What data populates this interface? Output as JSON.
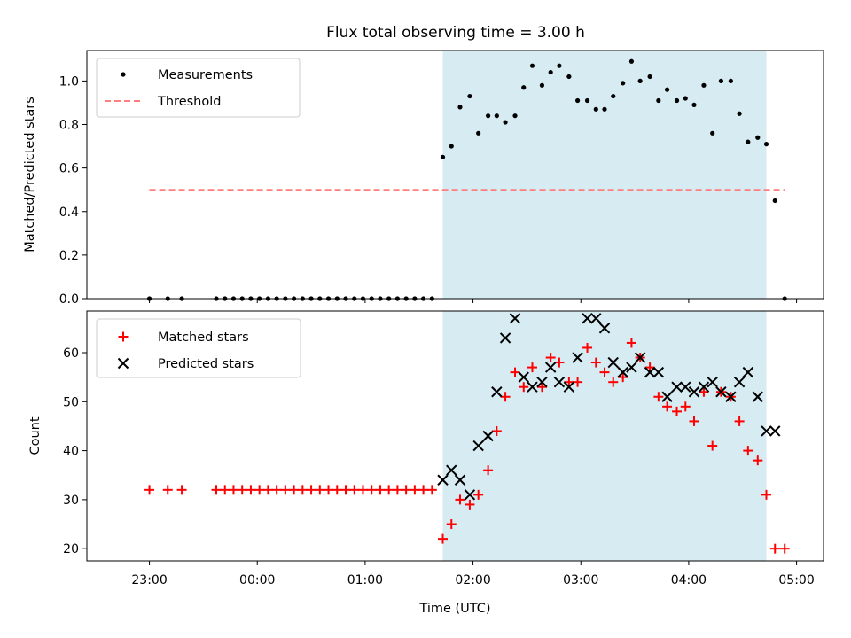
{
  "chart_data": [
    {
      "type": "scatter",
      "title": "Flux total observing time = 3.00 h",
      "xlabel": "",
      "ylabel": "Matched/Predicted stars",
      "ylim": [
        0,
        1.14
      ],
      "yticks": [
        0.0,
        0.2,
        0.4,
        0.6,
        0.8,
        1.0
      ],
      "ytick_labels": [
        "0.0",
        "0.2",
        "0.4",
        "0.6",
        "0.8",
        "1.0"
      ],
      "xlim_hours": [
        -1.58,
        5.25
      ],
      "shade_hours": [
        1.72,
        4.72
      ],
      "shade_color": "#add8e6",
      "legend_position": "upper-left",
      "series": [
        {
          "name": "Measurements",
          "marker": "dot",
          "color": "#000000",
          "x_hours": [
            -1.0,
            -0.83,
            -0.7,
            -0.38,
            -0.3,
            -0.22,
            -0.14,
            -0.06,
            0.02,
            0.1,
            0.18,
            0.26,
            0.34,
            0.42,
            0.5,
            0.58,
            0.66,
            0.74,
            0.82,
            0.9,
            0.98,
            1.06,
            1.14,
            1.22,
            1.3,
            1.38,
            1.46,
            1.54,
            1.62,
            1.72,
            1.8,
            1.88,
            1.97,
            2.05,
            2.14,
            2.22,
            2.3,
            2.39,
            2.47,
            2.55,
            2.64,
            2.72,
            2.8,
            2.89,
            2.97,
            3.06,
            3.14,
            3.22,
            3.3,
            3.39,
            3.47,
            3.55,
            3.64,
            3.72,
            3.8,
            3.89,
            3.97,
            4.05,
            4.14,
            4.22,
            4.3,
            4.39,
            4.47,
            4.55,
            4.64,
            4.72,
            4.8,
            4.89
          ],
          "values": [
            0,
            0,
            0,
            0,
            0,
            0,
            0,
            0,
            0,
            0,
            0,
            0,
            0,
            0,
            0,
            0,
            0,
            0,
            0,
            0,
            0,
            0,
            0,
            0,
            0,
            0,
            0,
            0,
            0,
            0.65,
            0.7,
            0.88,
            0.93,
            0.76,
            0.84,
            0.84,
            0.81,
            0.84,
            0.97,
            1.07,
            0.98,
            1.04,
            1.07,
            1.02,
            0.91,
            0.91,
            0.87,
            0.87,
            0.93,
            0.99,
            1.09,
            1.0,
            1.02,
            0.91,
            0.96,
            0.91,
            0.92,
            0.89,
            0.98,
            0.76,
            1.0,
            1.0,
            0.85,
            0.72,
            0.74,
            0.71,
            0.45,
            0.0
          ]
        },
        {
          "name": "Threshold",
          "marker": "dashed-line",
          "color": "#ff7f7f",
          "x_hours": [
            -1.0,
            4.89
          ],
          "values": [
            0.5,
            0.5
          ]
        }
      ]
    },
    {
      "type": "scatter",
      "title": "",
      "xlabel": "Time (UTC)",
      "ylabel": "Count",
      "ylim": [
        17.5,
        68.5
      ],
      "yticks": [
        20,
        30,
        40,
        50,
        60
      ],
      "ytick_labels": [
        "20",
        "30",
        "40",
        "50",
        "60"
      ],
      "xlim_hours": [
        -1.58,
        5.25
      ],
      "xticks_hours": [
        -1,
        0,
        1,
        2,
        3,
        4,
        5
      ],
      "xtick_labels": [
        "23:00",
        "00:00",
        "01:00",
        "02:00",
        "03:00",
        "04:00",
        "05:00"
      ],
      "shade_hours": [
        1.72,
        4.72
      ],
      "shade_color": "#add8e6",
      "legend_position": "upper-left",
      "series": [
        {
          "name": "Matched stars",
          "marker": "plus",
          "color": "#ff0000",
          "x_hours": [
            -1.0,
            -0.83,
            -0.7,
            -0.38,
            -0.3,
            -0.22,
            -0.14,
            -0.06,
            0.02,
            0.1,
            0.18,
            0.26,
            0.34,
            0.42,
            0.5,
            0.58,
            0.66,
            0.74,
            0.82,
            0.9,
            0.98,
            1.06,
            1.14,
            1.22,
            1.3,
            1.38,
            1.46,
            1.54,
            1.62,
            1.72,
            1.8,
            1.88,
            1.97,
            2.05,
            2.14,
            2.22,
            2.3,
            2.39,
            2.47,
            2.55,
            2.64,
            2.72,
            2.8,
            2.89,
            2.97,
            3.06,
            3.14,
            3.22,
            3.3,
            3.39,
            3.47,
            3.55,
            3.64,
            3.72,
            3.8,
            3.89,
            3.97,
            4.05,
            4.14,
            4.22,
            4.3,
            4.39,
            4.47,
            4.55,
            4.64,
            4.72,
            4.8,
            4.89
          ],
          "values": [
            32,
            32,
            32,
            32,
            32,
            32,
            32,
            32,
            32,
            32,
            32,
            32,
            32,
            32,
            32,
            32,
            32,
            32,
            32,
            32,
            32,
            32,
            32,
            32,
            32,
            32,
            32,
            32,
            32,
            22,
            25,
            30,
            29,
            31,
            36,
            44,
            51,
            56,
            53,
            57,
            53,
            59,
            58,
            54,
            54,
            61,
            58,
            56,
            54,
            55,
            62,
            59,
            57,
            51,
            49,
            48,
            49,
            46,
            52,
            41,
            52,
            51,
            46,
            40,
            38,
            31,
            20,
            20
          ]
        },
        {
          "name": "Predicted stars",
          "marker": "x",
          "color": "#000000",
          "x_hours": [
            1.72,
            1.8,
            1.88,
            1.97,
            2.05,
            2.14,
            2.22,
            2.3,
            2.39,
            2.47,
            2.55,
            2.64,
            2.72,
            2.8,
            2.89,
            2.97,
            3.06,
            3.14,
            3.22,
            3.3,
            3.39,
            3.47,
            3.55,
            3.64,
            3.72,
            3.8,
            3.89,
            3.97,
            4.05,
            4.14,
            4.22,
            4.3,
            4.39,
            4.47,
            4.55,
            4.64,
            4.72,
            4.8
          ],
          "values": [
            34,
            36,
            34,
            31,
            41,
            43,
            52,
            63,
            67,
            55,
            53,
            54,
            57,
            54,
            53,
            59,
            67,
            67,
            65,
            58,
            56,
            57,
            59,
            56,
            56,
            51,
            53,
            53,
            52,
            53,
            54,
            52,
            51,
            54,
            56,
            51,
            44,
            44
          ]
        }
      ]
    }
  ]
}
